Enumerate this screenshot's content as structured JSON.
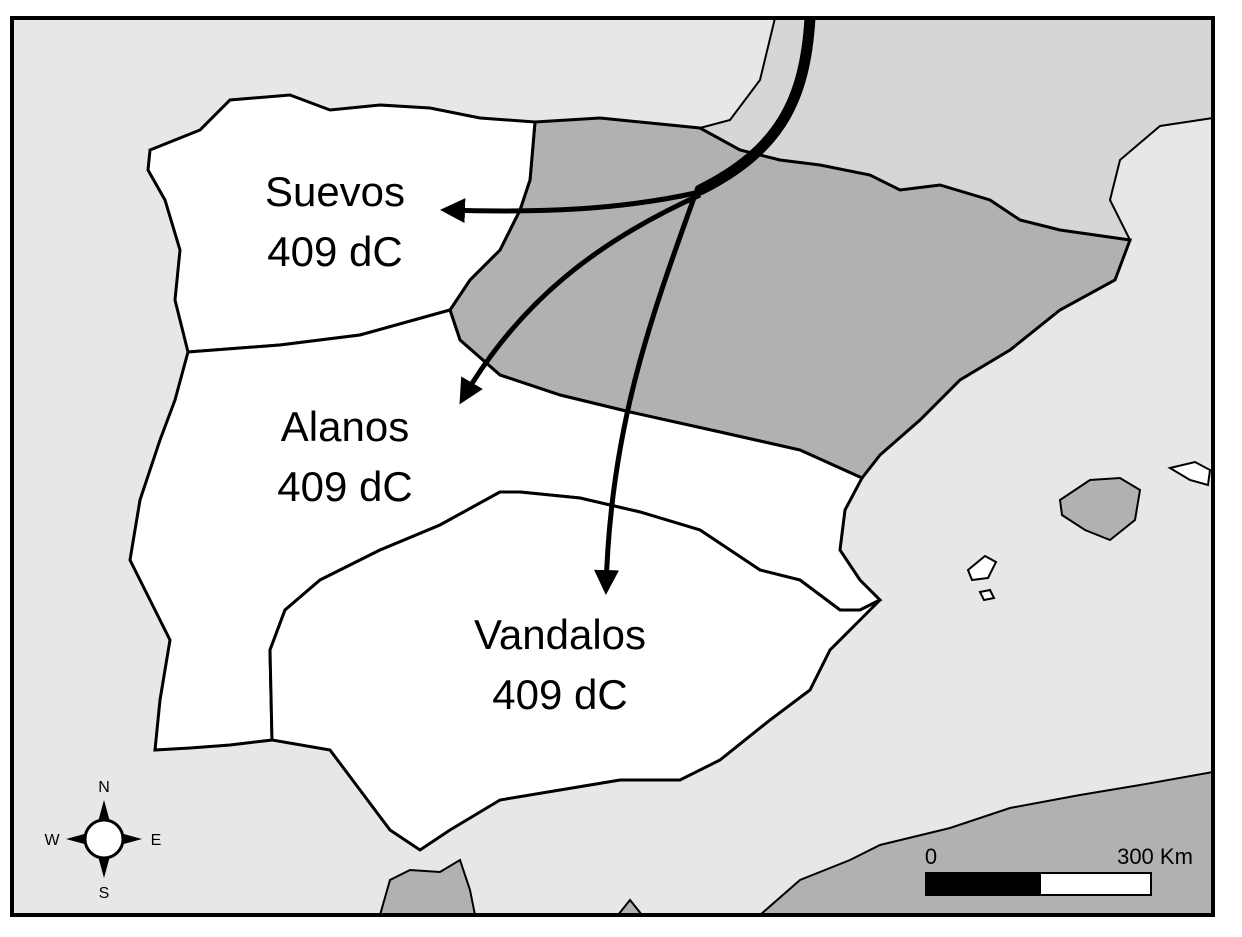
{
  "colors": {
    "sea": "#e7e7e7",
    "land_other": "#d6d6d6",
    "territory": "#ffffff",
    "hispania_unoccupied": "#b1b1b1",
    "border": "#000000"
  },
  "regions": {
    "suevos": {
      "name": "Suevos",
      "date": "409 dC"
    },
    "alanos": {
      "name": "Alanos",
      "date": "409 dC"
    },
    "vandalos": {
      "name": "Vandalos",
      "date": "409 dC"
    }
  },
  "compass": {
    "n": "N",
    "s": "S",
    "e": "E",
    "w": "W"
  },
  "scale": {
    "start": "0",
    "end": "300 Km"
  }
}
